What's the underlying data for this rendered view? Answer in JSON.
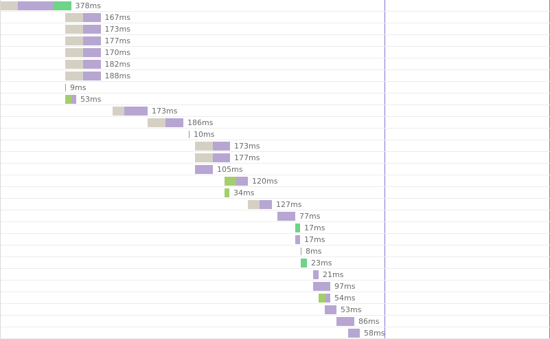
{
  "requests": [
    {
      "time": "378ms",
      "segments": [
        {
          "kind": "blocked",
          "ms": 50
        },
        {
          "kind": "wait",
          "ms": 103
        },
        {
          "kind": "receive",
          "ms": 52
        }
      ],
      "start_ms": 0
    },
    {
      "time": "167ms",
      "segments": [
        {
          "kind": "blocked",
          "ms": 51
        },
        {
          "kind": "wait",
          "ms": 52
        }
      ],
      "start_ms": 188
    },
    {
      "time": "173ms",
      "segments": [
        {
          "kind": "blocked",
          "ms": 51
        },
        {
          "kind": "wait",
          "ms": 52
        }
      ],
      "start_ms": 188
    },
    {
      "time": "177ms",
      "segments": [
        {
          "kind": "blocked",
          "ms": 51
        },
        {
          "kind": "wait",
          "ms": 52
        }
      ],
      "start_ms": 188
    },
    {
      "time": "170ms",
      "segments": [
        {
          "kind": "blocked",
          "ms": 51
        },
        {
          "kind": "wait",
          "ms": 52
        }
      ],
      "start_ms": 188
    },
    {
      "time": "182ms",
      "segments": [
        {
          "kind": "blocked",
          "ms": 51
        },
        {
          "kind": "wait",
          "ms": 52
        }
      ],
      "start_ms": 188
    },
    {
      "time": "188ms",
      "segments": [
        {
          "kind": "blocked",
          "ms": 51
        },
        {
          "kind": "wait",
          "ms": 52
        }
      ],
      "start_ms": 188
    },
    {
      "time": "9ms",
      "segments": [
        {
          "kind": "tick",
          "ms": 0
        }
      ],
      "start_ms": 188
    },
    {
      "time": "53ms",
      "segments": [
        {
          "kind": "connect",
          "ms": 18
        },
        {
          "kind": "wait",
          "ms": 14
        }
      ],
      "start_ms": 188
    },
    {
      "time": "173ms",
      "segments": [
        {
          "kind": "blocked",
          "ms": 34
        },
        {
          "kind": "wait",
          "ms": 68
        }
      ],
      "start_ms": 326
    },
    {
      "time": "186ms",
      "segments": [
        {
          "kind": "blocked",
          "ms": 52
        },
        {
          "kind": "wait",
          "ms": 52
        }
      ],
      "start_ms": 428
    },
    {
      "time": "10ms",
      "segments": [
        {
          "kind": "tick",
          "ms": 0
        }
      ],
      "start_ms": 548
    },
    {
      "time": "173ms",
      "segments": [
        {
          "kind": "blocked",
          "ms": 52
        },
        {
          "kind": "wait",
          "ms": 50
        }
      ],
      "start_ms": 566
    },
    {
      "time": "177ms",
      "segments": [
        {
          "kind": "blocked",
          "ms": 52
        },
        {
          "kind": "wait",
          "ms": 50
        }
      ],
      "start_ms": 566
    },
    {
      "time": "105ms",
      "segments": [
        {
          "kind": "wait",
          "ms": 52
        }
      ],
      "start_ms": 566
    },
    {
      "time": "120ms",
      "segments": [
        {
          "kind": "connect",
          "ms": 34
        },
        {
          "kind": "wait",
          "ms": 34
        }
      ],
      "start_ms": 652
    },
    {
      "time": "34ms",
      "segments": [
        {
          "kind": "connect",
          "ms": 14
        }
      ],
      "start_ms": 652
    },
    {
      "time": "127ms",
      "segments": [
        {
          "kind": "blocked",
          "ms": 34
        },
        {
          "kind": "wait",
          "ms": 36
        }
      ],
      "start_ms": 720
    },
    {
      "time": "77ms",
      "segments": [
        {
          "kind": "wait",
          "ms": 52
        }
      ],
      "start_ms": 806
    },
    {
      "time": "17ms",
      "segments": [
        {
          "kind": "receive",
          "ms": 14
        }
      ],
      "start_ms": 858
    },
    {
      "time": "17ms",
      "segments": [
        {
          "kind": "wait",
          "ms": 14
        }
      ],
      "start_ms": 858
    },
    {
      "time": "8ms",
      "segments": [
        {
          "kind": "tick",
          "ms": 0
        }
      ],
      "start_ms": 874
    },
    {
      "time": "23ms",
      "segments": [
        {
          "kind": "receive",
          "ms": 18
        }
      ],
      "start_ms": 874
    },
    {
      "time": "21ms",
      "segments": [
        {
          "kind": "wait",
          "ms": 16
        }
      ],
      "start_ms": 910
    },
    {
      "time": "97ms",
      "segments": [
        {
          "kind": "wait",
          "ms": 50
        }
      ],
      "start_ms": 910
    },
    {
      "time": "54ms",
      "segments": [
        {
          "kind": "connect",
          "ms": 20
        },
        {
          "kind": "wait",
          "ms": 14
        }
      ],
      "start_ms": 926
    },
    {
      "time": "53ms",
      "segments": [
        {
          "kind": "wait",
          "ms": 34
        }
      ],
      "start_ms": 944
    },
    {
      "time": "86ms",
      "segments": [
        {
          "kind": "wait",
          "ms": 52
        }
      ],
      "start_ms": 978
    },
    {
      "time": "58ms",
      "segments": [
        {
          "kind": "wait",
          "ms": 34
        }
      ],
      "start_ms": 1012
    }
  ]
}
